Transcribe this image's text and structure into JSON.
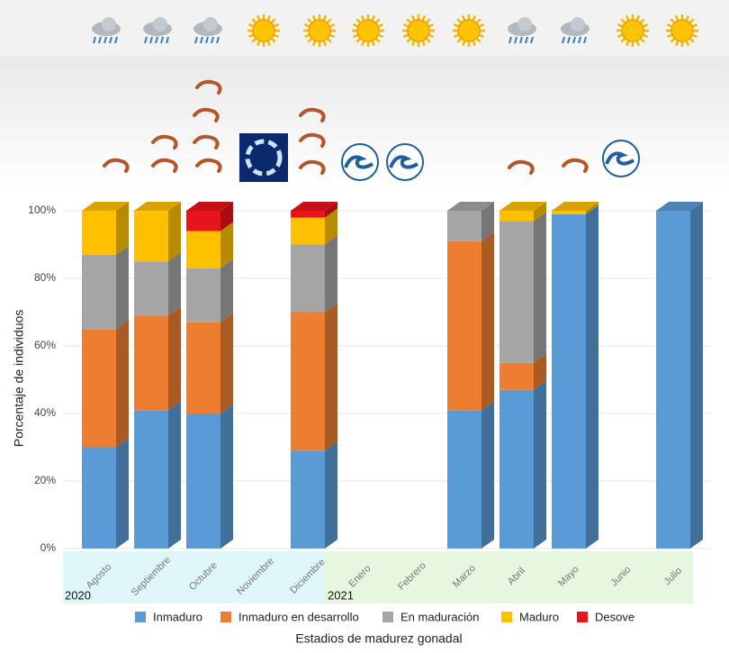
{
  "chart_data": {
    "type": "stacked_bar",
    "x_label": "Estadios de madurez gonadal",
    "y_label": "Porcentaje de individuos",
    "categories": [
      "Agosto",
      "Septiembre",
      "Octubre",
      "Noviembre",
      "Diciembre",
      "Enero",
      "Febrero",
      "Marzo",
      "Abril",
      "Mayo",
      "Junio",
      "Julio"
    ],
    "year_labels": [
      "2020",
      "2021"
    ],
    "ylim": [
      0,
      100
    ],
    "yticks": [
      {
        "value": 0,
        "label": "0%"
      },
      {
        "value": 20,
        "label": "20%"
      },
      {
        "value": 40,
        "label": "40%"
      },
      {
        "value": 60,
        "label": "60%"
      },
      {
        "value": 80,
        "label": "80%"
      },
      {
        "value": 100,
        "label": "100%"
      }
    ],
    "legend": "bottom",
    "series": [
      {
        "name": "Inmaduro",
        "color": "#5b9bd5",
        "values": [
          30,
          41,
          40,
          null,
          29,
          null,
          null,
          41,
          47,
          99,
          null,
          100
        ]
      },
      {
        "name": "Inmaduro en desarrollo",
        "color": "#ed7d31",
        "values": [
          35,
          28,
          27,
          null,
          41,
          null,
          null,
          50,
          8,
          0,
          null,
          0
        ]
      },
      {
        "name": "En maduración",
        "color": "#a5a5a5",
        "values": [
          22,
          16,
          16,
          null,
          20,
          null,
          null,
          9,
          42,
          0,
          null,
          0
        ]
      },
      {
        "name": "Maduro",
        "color": "#ffc000",
        "values": [
          13,
          15,
          11,
          null,
          8,
          null,
          null,
          0,
          3,
          1,
          null,
          0
        ]
      },
      {
        "name": "Desove",
        "color": "#e8141b",
        "values": [
          0,
          0,
          6,
          null,
          2,
          null,
          null,
          0,
          0,
          0,
          null,
          0
        ]
      }
    ]
  }
}
